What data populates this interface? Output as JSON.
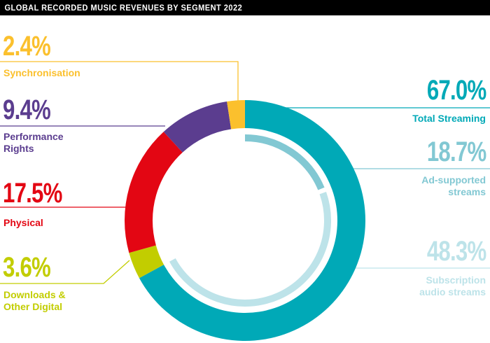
{
  "header": {
    "title": "GLOBAL RECORDED MUSIC REVENUES BY SEGMENT 2022"
  },
  "colors": {
    "streaming": "#00a9b7",
    "ad_supported": "#82c8d3",
    "subscription": "#bde3e9",
    "synchronisation": "#fbc02d",
    "performance": "#5b3d8f",
    "physical": "#e30613",
    "downloads": "#c2cd00"
  },
  "chart_data": {
    "type": "pie",
    "variant": "donut",
    "title": "GLOBAL RECORDED MUSIC REVENUES BY SEGMENT 2022",
    "unit": "%",
    "slices": [
      {
        "name": "Total Streaming",
        "lines": [
          "Total Streaming"
        ],
        "value": 67.0,
        "label": "67.0%",
        "color": "#00a9b7"
      },
      {
        "name": "Downloads & Other Digital",
        "lines": [
          "Downloads &",
          "Other Digital"
        ],
        "value": 3.6,
        "label": "3.6%",
        "color": "#c2cd00"
      },
      {
        "name": "Physical",
        "lines": [
          "Physical"
        ],
        "value": 17.5,
        "label": "17.5%",
        "color": "#e30613"
      },
      {
        "name": "Performance Rights",
        "lines": [
          "Performance",
          "Rights"
        ],
        "value": 9.4,
        "label": "9.4%",
        "color": "#5b3d8f"
      },
      {
        "name": "Synchronisation",
        "lines": [
          "Synchronisation"
        ],
        "value": 2.4,
        "label": "2.4%",
        "color": "#fbc02d"
      }
    ],
    "streaming_breakdown": [
      {
        "name": "Ad-supported streams",
        "lines": [
          "Ad-supported",
          "streams"
        ],
        "value": 18.7,
        "label": "18.7%",
        "color": "#82c8d3"
      },
      {
        "name": "Subscription audio streams",
        "lines": [
          "Subscription",
          "audio streams"
        ],
        "value": 48.3,
        "label": "48.3%",
        "color": "#bde3e9"
      }
    ]
  }
}
